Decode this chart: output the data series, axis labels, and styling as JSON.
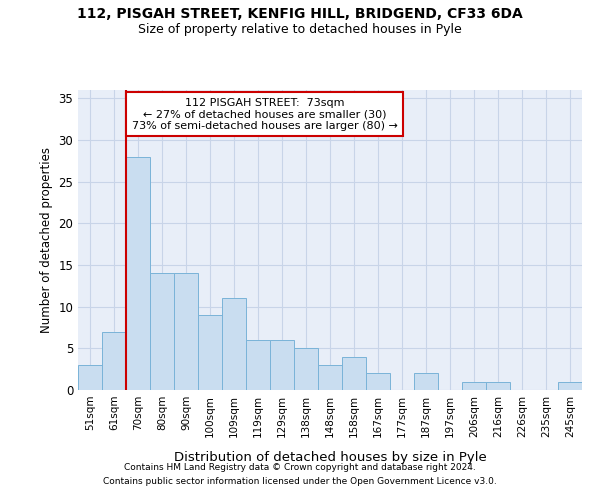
{
  "title_line1": "112, PISGAH STREET, KENFIG HILL, BRIDGEND, CF33 6DA",
  "title_line2": "Size of property relative to detached houses in Pyle",
  "xlabel": "Distribution of detached houses by size in Pyle",
  "ylabel": "Number of detached properties",
  "categories": [
    "51sqm",
    "61sqm",
    "70sqm",
    "80sqm",
    "90sqm",
    "100sqm",
    "109sqm",
    "119sqm",
    "129sqm",
    "138sqm",
    "148sqm",
    "158sqm",
    "167sqm",
    "177sqm",
    "187sqm",
    "197sqm",
    "206sqm",
    "216sqm",
    "226sqm",
    "235sqm",
    "245sqm"
  ],
  "values": [
    3,
    7,
    28,
    14,
    14,
    9,
    11,
    6,
    6,
    5,
    3,
    4,
    2,
    0,
    2,
    0,
    1,
    1,
    0,
    0,
    1
  ],
  "bar_color": "#c9ddf0",
  "bar_edge_color": "#7ab3d8",
  "grid_color": "#c8d4e8",
  "background_color": "#e8eef8",
  "marker_line_color": "#cc0000",
  "annotation_box_color": "#ffffff",
  "annotation_box_edge": "#cc0000",
  "marker_label": "112 PISGAH STREET:  73sqm",
  "annotation_line1": "← 27% of detached houses are smaller (30)",
  "annotation_line2": "73% of semi-detached houses are larger (80) →",
  "ylim": [
    0,
    36
  ],
  "yticks": [
    0,
    5,
    10,
    15,
    20,
    25,
    30,
    35
  ],
  "footnote1": "Contains HM Land Registry data © Crown copyright and database right 2024.",
  "footnote2": "Contains public sector information licensed under the Open Government Licence v3.0."
}
